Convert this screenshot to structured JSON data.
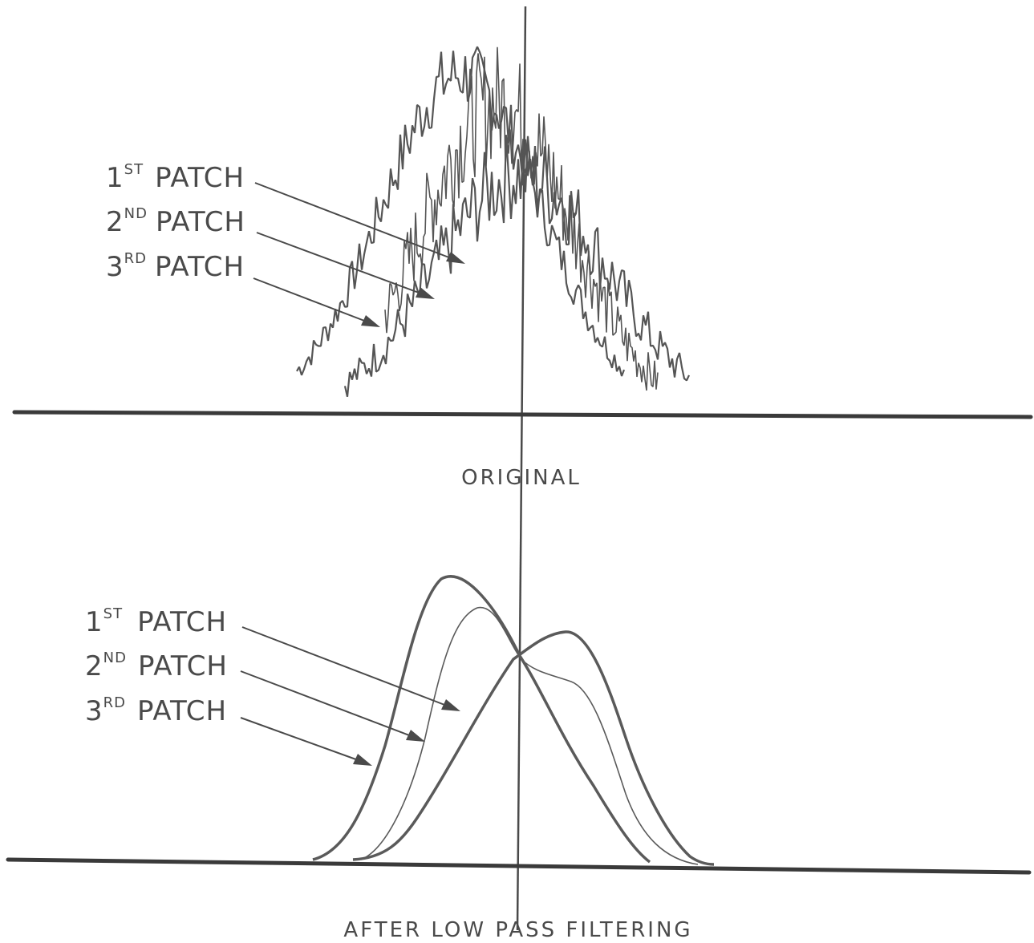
{
  "top_panel": {
    "caption": "ORIGINAL",
    "labels": [
      {
        "num": "1",
        "sup": "ST",
        "word": "PATCH"
      },
      {
        "num": "2",
        "sup": "ND",
        "word": "PATCH"
      },
      {
        "num": "3",
        "sup": "RD",
        "word": "PATCH"
      }
    ]
  },
  "bottom_panel": {
    "caption": "AFTER LOW PASS FILTERING",
    "labels": [
      {
        "num": "1",
        "sup": "ST",
        "word": "PATCH"
      },
      {
        "num": "2",
        "sup": "ND",
        "word": "PATCH"
      },
      {
        "num": "3",
        "sup": "RD",
        "word": "PATCH"
      }
    ]
  },
  "ink_color": "#3a3a3a"
}
